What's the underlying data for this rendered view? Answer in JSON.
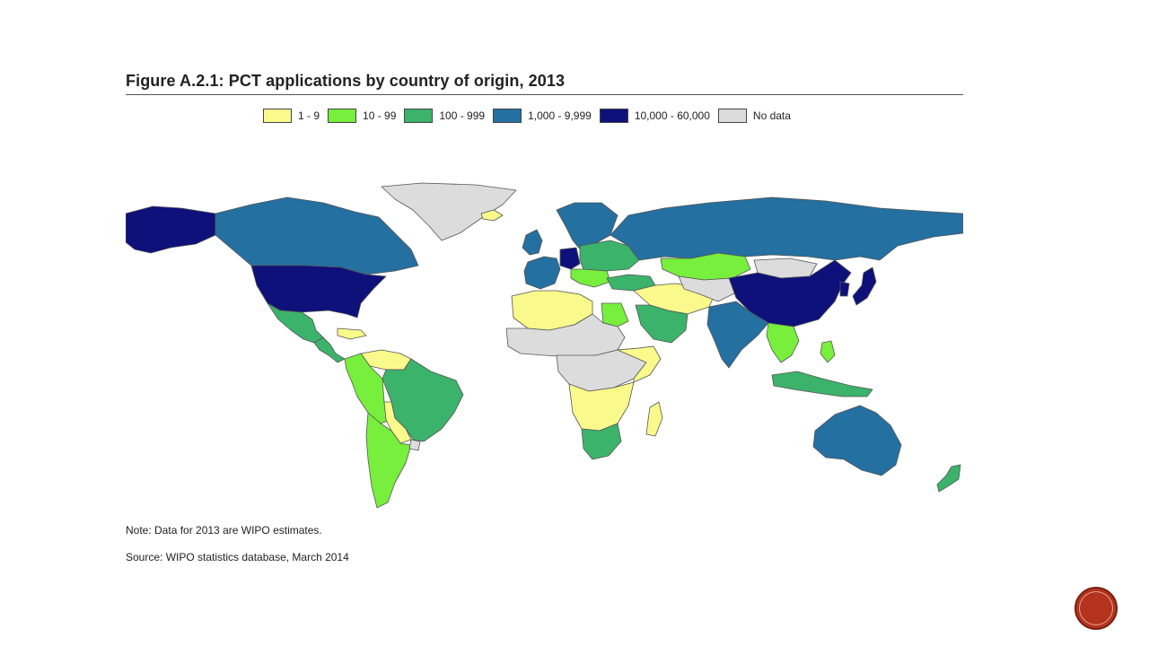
{
  "figure": {
    "title": "Figure A.2.1: PCT applications by country of origin, 2013",
    "note": "Note: Data for 2013 are WIPO estimates.",
    "source": "Source: WIPO statistics database, March 2014"
  },
  "legend": [
    {
      "label": "1 - 9",
      "color": "#fafa8c"
    },
    {
      "label": "10 - 99",
      "color": "#77ef3c"
    },
    {
      "label": "100 - 999",
      "color": "#3cb36b"
    },
    {
      "label": "1,000 - 9,999",
      "color": "#2470a0"
    },
    {
      "label": "10,000 - 60,000",
      "color": "#0e117a"
    },
    {
      "label": "No data",
      "color": "#dcdcdc"
    }
  ],
  "map": {
    "regions": [
      {
        "name": "greenland",
        "category": "No data"
      },
      {
        "name": "alaska",
        "category": "10,000 - 60,000"
      },
      {
        "name": "canada",
        "category": "1,000 - 9,999"
      },
      {
        "name": "united-states",
        "category": "10,000 - 60,000"
      },
      {
        "name": "mexico",
        "category": "100 - 999"
      },
      {
        "name": "central-america",
        "category": "100 - 999"
      },
      {
        "name": "caribbean",
        "category": "1 - 9"
      },
      {
        "name": "venezuela-guianas",
        "category": "1 - 9"
      },
      {
        "name": "colombia-peru",
        "category": "10 - 99"
      },
      {
        "name": "brazil",
        "category": "100 - 999"
      },
      {
        "name": "bolivia-paraguay",
        "category": "1 - 9"
      },
      {
        "name": "chile-argentina",
        "category": "10 - 99"
      },
      {
        "name": "uruguay",
        "category": "No data"
      },
      {
        "name": "iceland",
        "category": "1 - 9"
      },
      {
        "name": "scandinavia",
        "category": "1,000 - 9,999"
      },
      {
        "name": "uk-ireland",
        "category": "1,000 - 9,999"
      },
      {
        "name": "western-europe",
        "category": "1,000 - 9,999"
      },
      {
        "name": "germany",
        "category": "10,000 - 60,000"
      },
      {
        "name": "eastern-europe",
        "category": "100 - 999"
      },
      {
        "name": "balkans",
        "category": "10 - 99"
      },
      {
        "name": "russia",
        "category": "1,000 - 9,999"
      },
      {
        "name": "turkey",
        "category": "100 - 999"
      },
      {
        "name": "north-africa",
        "category": "1 - 9"
      },
      {
        "name": "egypt",
        "category": "10 - 99"
      },
      {
        "name": "sahel",
        "category": "No data"
      },
      {
        "name": "central-africa",
        "category": "No data"
      },
      {
        "name": "east-africa",
        "category": "1 - 9"
      },
      {
        "name": "southern-africa",
        "category": "1 - 9"
      },
      {
        "name": "south-africa",
        "category": "100 - 999"
      },
      {
        "name": "madagascar",
        "category": "1 - 9"
      },
      {
        "name": "saudi-arabia",
        "category": "100 - 999"
      },
      {
        "name": "middle-east",
        "category": "1 - 9"
      },
      {
        "name": "kazakhstan",
        "category": "10 - 99"
      },
      {
        "name": "central-asia",
        "category": "No data"
      },
      {
        "name": "mongolia",
        "category": "No data"
      },
      {
        "name": "china",
        "category": "10,000 - 60,000"
      },
      {
        "name": "india",
        "category": "1,000 - 9,999"
      },
      {
        "name": "japan",
        "category": "10,000 - 60,000"
      },
      {
        "name": "korea",
        "category": "10,000 - 60,000"
      },
      {
        "name": "southeast-asia",
        "category": "10 - 99"
      },
      {
        "name": "indonesia",
        "category": "100 - 999"
      },
      {
        "name": "philippines",
        "category": "10 - 99"
      },
      {
        "name": "australia",
        "category": "1,000 - 9,999"
      },
      {
        "name": "new-zealand",
        "category": "100 - 999"
      }
    ]
  }
}
